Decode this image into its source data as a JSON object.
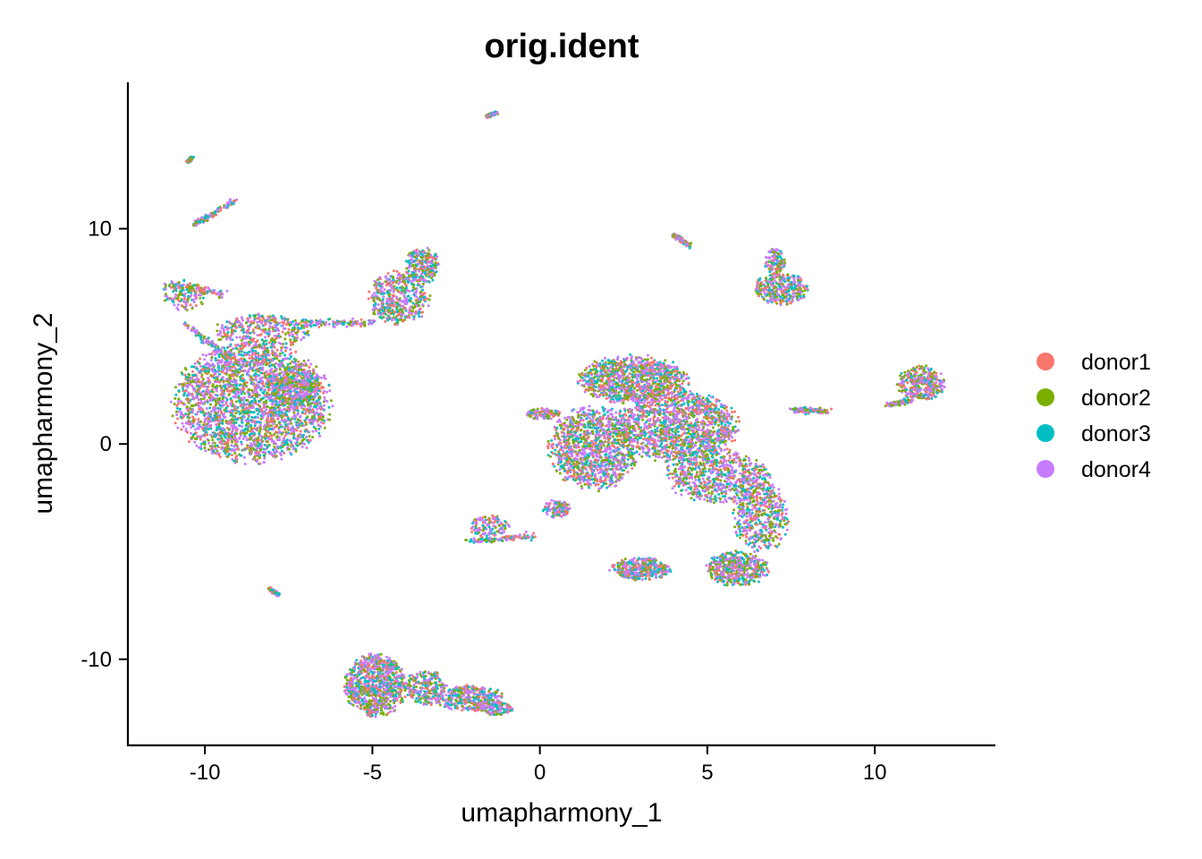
{
  "chart_data": {
    "type": "scatter",
    "title": "orig.ident",
    "xlabel": "umapharmony_1",
    "ylabel": "umapharmony_2",
    "xlim": [
      -12.3,
      13.6
    ],
    "ylim": [
      -14.0,
      16.8
    ],
    "x_ticks": [
      -10,
      -5,
      0,
      5,
      10
    ],
    "y_ticks": [
      -10,
      0,
      10
    ],
    "x_tick_labels": [
      "-10",
      "-5",
      "0",
      "5",
      "10"
    ],
    "y_tick_labels": [
      "-10",
      "0",
      "10"
    ],
    "grid": false,
    "legend_position": "right",
    "series": [
      {
        "name": "donor1",
        "color": "#F8766D"
      },
      {
        "name": "donor2",
        "color": "#7CAE00"
      },
      {
        "name": "donor3",
        "color": "#00BFC4"
      },
      {
        "name": "donor4",
        "color": "#C77CFF"
      }
    ],
    "clusters": [
      {
        "cx": -8.6,
        "cy": 1.9,
        "rx": 2.3,
        "ry": 2.7,
        "weight": 22
      },
      {
        "cx": -7.4,
        "cy": 2.7,
        "rx": 0.9,
        "ry": 1.0,
        "weight": 3
      },
      {
        "cx": -8.3,
        "cy": 5.2,
        "rx": 1.4,
        "ry": 0.8,
        "weight": 3
      },
      {
        "cx": -10.6,
        "cy": 6.9,
        "rx": 0.6,
        "ry": 0.7,
        "weight": 1
      },
      {
        "cx": -4.2,
        "cy": 6.8,
        "rx": 0.9,
        "ry": 1.2,
        "weight": 4
      },
      {
        "cx": -3.5,
        "cy": 8.3,
        "rx": 0.5,
        "ry": 0.8,
        "weight": 2
      },
      {
        "cx": 2.8,
        "cy": 3.0,
        "rx": 1.6,
        "ry": 1.1,
        "weight": 9
      },
      {
        "cx": 1.6,
        "cy": -0.2,
        "rx": 1.3,
        "ry": 1.9,
        "weight": 10
      },
      {
        "cx": 4.1,
        "cy": 0.8,
        "rx": 1.8,
        "ry": 1.6,
        "weight": 12
      },
      {
        "cx": 5.3,
        "cy": -1.5,
        "rx": 1.5,
        "ry": 1.2,
        "weight": 6
      },
      {
        "cx": 6.6,
        "cy": -3.4,
        "rx": 0.8,
        "ry": 1.6,
        "weight": 4
      },
      {
        "cx": 5.9,
        "cy": -5.8,
        "rx": 0.9,
        "ry": 0.8,
        "weight": 4
      },
      {
        "cx": 3.0,
        "cy": -5.8,
        "rx": 0.9,
        "ry": 0.5,
        "weight": 3
      },
      {
        "cx": 7.2,
        "cy": 7.2,
        "rx": 0.8,
        "ry": 0.7,
        "weight": 3
      },
      {
        "cx": 7.0,
        "cy": 8.5,
        "rx": 0.3,
        "ry": 0.6,
        "weight": 1
      },
      {
        "cx": 11.4,
        "cy": 2.8,
        "rx": 0.7,
        "ry": 0.8,
        "weight": 3
      },
      {
        "cx": -4.9,
        "cy": -11.2,
        "rx": 0.9,
        "ry": 1.4,
        "weight": 8
      },
      {
        "cx": -3.4,
        "cy": -11.3,
        "rx": 0.6,
        "ry": 0.8,
        "weight": 2
      },
      {
        "cx": -2.1,
        "cy": -11.8,
        "rx": 1.0,
        "ry": 0.6,
        "weight": 3
      },
      {
        "cx": -1.3,
        "cy": -12.3,
        "rx": 0.5,
        "ry": 0.3,
        "weight": 1
      },
      {
        "cx": -1.5,
        "cy": -3.8,
        "rx": 0.6,
        "ry": 0.5,
        "weight": 1
      },
      {
        "cx": 0.5,
        "cy": -3.0,
        "rx": 0.4,
        "ry": 0.4,
        "weight": 1
      },
      {
        "cx": 0.1,
        "cy": 1.4,
        "rx": 0.5,
        "ry": 0.25,
        "weight": 1
      }
    ],
    "streaks": [
      {
        "from": [
          -11.2,
          7.4
        ],
        "to": [
          -9.5,
          7.0
        ],
        "width": 0.25,
        "weight": 1
      },
      {
        "from": [
          -7.2,
          5.6
        ],
        "to": [
          -5.0,
          5.6
        ],
        "width": 0.2,
        "weight": 1
      },
      {
        "from": [
          -10.3,
          10.2
        ],
        "to": [
          -9.1,
          11.3
        ],
        "width": 0.15,
        "weight": 1
      },
      {
        "from": [
          -1.6,
          15.2
        ],
        "to": [
          -1.3,
          15.4
        ],
        "width": 0.08,
        "weight": 1
      },
      {
        "from": [
          -10.5,
          13.1
        ],
        "to": [
          -10.4,
          13.3
        ],
        "width": 0.06,
        "weight": 1
      },
      {
        "from": [
          4.0,
          9.7
        ],
        "to": [
          4.5,
          9.2
        ],
        "width": 0.1,
        "weight": 1
      },
      {
        "from": [
          -8.1,
          -6.7
        ],
        "to": [
          -7.8,
          -7.0
        ],
        "width": 0.07,
        "weight": 1
      },
      {
        "from": [
          7.6,
          1.6
        ],
        "to": [
          8.6,
          1.5
        ],
        "width": 0.15,
        "weight": 1
      },
      {
        "from": [
          10.4,
          1.8
        ],
        "to": [
          11.0,
          2.0
        ],
        "width": 0.12,
        "weight": 1
      },
      {
        "from": [
          -10.6,
          5.6
        ],
        "to": [
          -9.2,
          3.9
        ],
        "width": 0.15,
        "weight": 1
      },
      {
        "from": [
          -2.1,
          -4.5
        ],
        "to": [
          -0.2,
          -4.3
        ],
        "width": 0.15,
        "weight": 1
      }
    ],
    "point_count": 14000
  }
}
